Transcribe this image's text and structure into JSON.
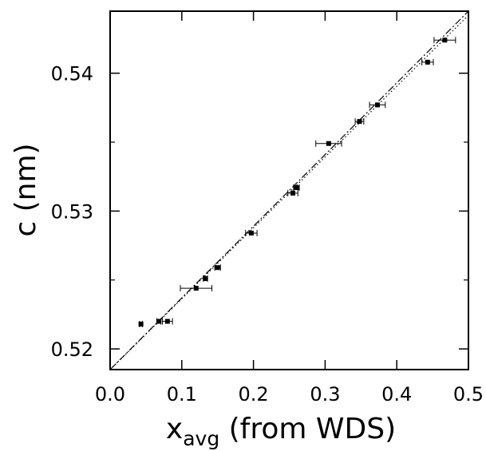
{
  "chart_data": {
    "type": "scatter",
    "title": "",
    "xlabel": {
      "main": "x",
      "sub": "avg",
      "rest": " (from WDS)"
    },
    "ylabel": "c (nm)",
    "xlim": [
      0.0,
      0.5
    ],
    "ylim": [
      0.5185,
      0.5445
    ],
    "x_ticks": [
      0.0,
      0.1,
      0.2,
      0.3,
      0.4,
      0.5
    ],
    "x_tick_labels": [
      "0.0",
      "0.1",
      "0.2",
      "0.3",
      "0.4",
      "0.5"
    ],
    "y_ticks": [
      0.52,
      0.53,
      0.54
    ],
    "y_tick_labels": [
      "0.52",
      "0.53",
      "0.54"
    ],
    "y_minor_ticks": [
      0.525,
      0.535
    ],
    "grid": false,
    "legend": "none",
    "points": [
      {
        "x": 0.043,
        "y": 0.5218,
        "xerr": 0.002
      },
      {
        "x": 0.068,
        "y": 0.522,
        "xerr": 0.003
      },
      {
        "x": 0.08,
        "y": 0.522,
        "xerr": 0.007
      },
      {
        "x": 0.12,
        "y": 0.5244,
        "xerr": 0.022
      },
      {
        "x": 0.133,
        "y": 0.5251,
        "xerr": 0.003
      },
      {
        "x": 0.15,
        "y": 0.5259,
        "xerr": 0.004
      },
      {
        "x": 0.197,
        "y": 0.5284,
        "xerr": 0.008
      },
      {
        "x": 0.255,
        "y": 0.5313,
        "xerr": 0.007
      },
      {
        "x": 0.26,
        "y": 0.5317,
        "xerr": 0.004
      },
      {
        "x": 0.305,
        "y": 0.5349,
        "xerr": 0.018
      },
      {
        "x": 0.348,
        "y": 0.5365,
        "xerr": 0.006
      },
      {
        "x": 0.373,
        "y": 0.5377,
        "xerr": 0.011
      },
      {
        "x": 0.443,
        "y": 0.5408,
        "xerr": 0.008
      },
      {
        "x": 0.467,
        "y": 0.5424,
        "xerr": 0.015
      }
    ],
    "fit_lines": [
      {
        "style": "dash-dot",
        "x": [
          0.0,
          0.5
        ],
        "y": [
          0.5185,
          0.5445
        ]
      },
      {
        "style": "dotted",
        "x": [
          0.0,
          0.5
        ],
        "y": [
          0.5185,
          0.5442
        ]
      }
    ]
  }
}
